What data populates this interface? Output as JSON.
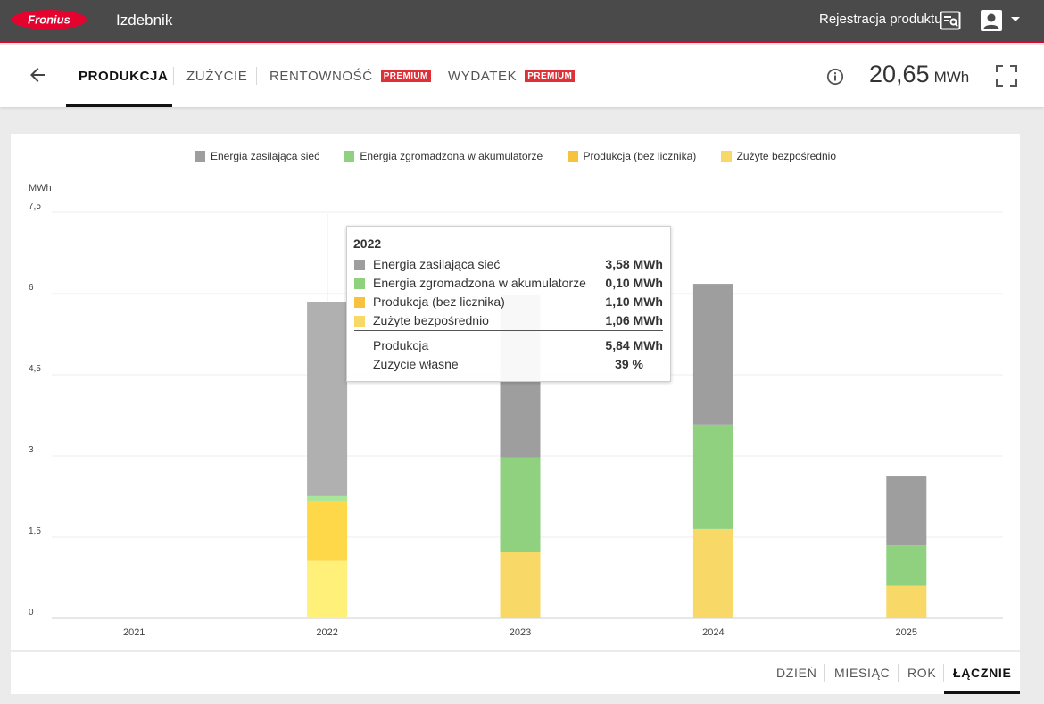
{
  "header": {
    "logo_text": "Fronius",
    "title": "Izdebnik",
    "register_link": "Rejestracja produktu",
    "icons": {
      "register": "certificate-search-icon",
      "account": "account-box-icon",
      "menu": "caret-down-icon"
    },
    "colors": {
      "bar": "#4a4a4a",
      "accent": "#e4032e"
    }
  },
  "nav": {
    "back_icon": "arrow-left-icon",
    "tabs": [
      {
        "label": "PRODUKCJA",
        "active": true
      },
      {
        "label": "ZUŻYCIE",
        "active": false
      },
      {
        "label": "RENTOWNOŚĆ",
        "badge": "PREMIUM",
        "active": false
      },
      {
        "label": "WYDATEK",
        "badge": "PREMIUM",
        "active": false
      }
    ],
    "total_value": "20,65",
    "total_unit": "MWh",
    "info_icon": "info-icon",
    "fullscreen_icon": "fullscreen-icon"
  },
  "chart_data": {
    "type": "bar",
    "stacked": true,
    "categories": [
      "2021",
      "2022",
      "2023",
      "2024",
      "2025"
    ],
    "ylabel": "MWh",
    "ylim": [
      0,
      7.5
    ],
    "yticks": [
      "0",
      "1,5",
      "3",
      "4,5",
      "6",
      "7,5"
    ],
    "grid": true,
    "legend_position": "top",
    "series": [
      {
        "name": "Zużyte bezpośrednio",
        "color": "#f8d867",
        "values": [
          0,
          1.06,
          1.22,
          1.65,
          0.6
        ]
      },
      {
        "name": "Produkcja (bez licznika)",
        "color": "#f8c23f",
        "values": [
          0,
          1.1,
          0,
          0,
          0
        ]
      },
      {
        "name": "Energia zgromadzona w akumulatorze",
        "color": "#8fd17f",
        "values": [
          0,
          0.1,
          1.75,
          1.93,
          0.75
        ]
      },
      {
        "name": "Energia zasilająca sieć",
        "color": "#9e9e9e",
        "values": [
          0,
          3.58,
          3.0,
          2.6,
          1.27
        ]
      }
    ],
    "highlight_index": 1,
    "highlight_colors": [
      "#fff07a",
      "#ffd84a",
      "#a9e69a",
      "#b0b0b0"
    ],
    "legend_order": [
      "Energia zasilająca sieć",
      "Energia zgromadzona w akumulatorze",
      "Produkcja (bez licznika)",
      "Zużyte bezpośrednio"
    ]
  },
  "tooltip": {
    "year": "2022",
    "rows": [
      {
        "label": "Energia zasilająca sieć",
        "value": "3,58 MWh",
        "color": "#9e9e9e"
      },
      {
        "label": "Energia zgromadzona w akumulatorze",
        "value": "0,10 MWh",
        "color": "#8fd17f"
      },
      {
        "label": "Produkcja (bez licznika)",
        "value": "1,10 MWh",
        "color": "#f8c23f"
      },
      {
        "label": "Zużyte bezpośrednio",
        "value": "1,06 MWh",
        "color": "#f8d867"
      }
    ],
    "summary": [
      {
        "label": "Produkcja",
        "value": "5,84 MWh"
      },
      {
        "label": "Zużycie własne",
        "value": "39 %"
      }
    ]
  },
  "periods": [
    {
      "label": "DZIEŃ",
      "active": false
    },
    {
      "label": "MIESIĄC",
      "active": false
    },
    {
      "label": "ROK",
      "active": false
    },
    {
      "label": "ŁĄCZNIE",
      "active": true
    }
  ]
}
